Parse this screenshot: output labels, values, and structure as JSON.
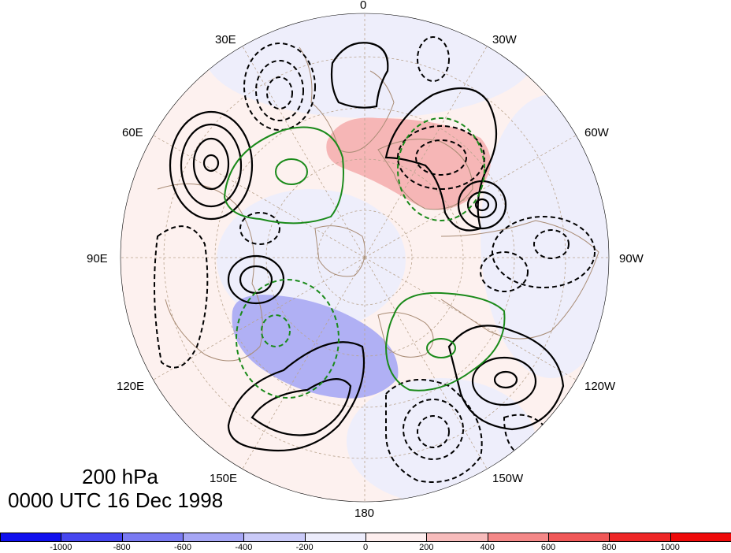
{
  "map": {
    "projection": "north-polar-stereographic",
    "longitude_labels": [
      {
        "text": "0",
        "lon": 0
      },
      {
        "text": "30W",
        "lon": -30
      },
      {
        "text": "60W",
        "lon": -60
      },
      {
        "text": "90W",
        "lon": -90
      },
      {
        "text": "120W",
        "lon": -120
      },
      {
        "text": "150W",
        "lon": -150
      },
      {
        "text": "180",
        "lon": 180
      },
      {
        "text": "150E",
        "lon": 150
      },
      {
        "text": "120E",
        "lon": 120
      },
      {
        "text": "90E",
        "lon": 90
      },
      {
        "text": "60E",
        "lon": 60
      },
      {
        "text": "30E",
        "lon": 30
      }
    ],
    "grid": true,
    "coastline_color": "#a88b74",
    "positive_contour_color": "#000000",
    "negative_contour_style": "dashed-black",
    "green_contour_color": "#1a8a1a"
  },
  "title": {
    "level": "200 hPa",
    "time": "0000 UTC 16 Dec 1998"
  },
  "colorbar": {
    "ticks": [
      "-1000",
      "-800",
      "-600",
      "-400",
      "-200",
      "0",
      "200",
      "400",
      "600",
      "800",
      "1000"
    ],
    "colors": [
      "#1010ee",
      "#4646f0",
      "#7a7af2",
      "#a6a6f5",
      "#cacaf8",
      "#ececfb",
      "#fdeeee",
      "#f7bcbc",
      "#f48888",
      "#f05858",
      "#ee2626",
      "#ee0a0a"
    ]
  }
}
